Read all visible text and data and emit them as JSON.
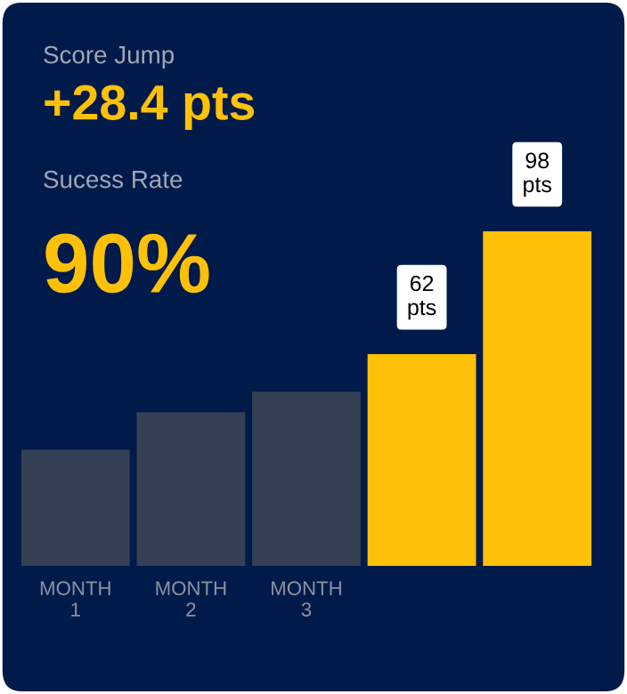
{
  "chart_data": {
    "type": "bar",
    "ylim": [
      0,
      98
    ],
    "categories": [
      "MONTH\n1",
      "MONTH\n2",
      "MONTH\n3",
      null,
      null
    ],
    "values": [
      34,
      45,
      51,
      62,
      98
    ],
    "colors": [
      "#344154",
      "#344154",
      "#344154",
      "#ffc107",
      "#ffc107"
    ],
    "value_labels": [
      null,
      null,
      null,
      "62\npts",
      "98\npts"
    ],
    "annotations": [
      "Score Jump",
      "+28.4 pts",
      "Sucess Rate",
      "90%"
    ],
    "legend": false
  }
}
